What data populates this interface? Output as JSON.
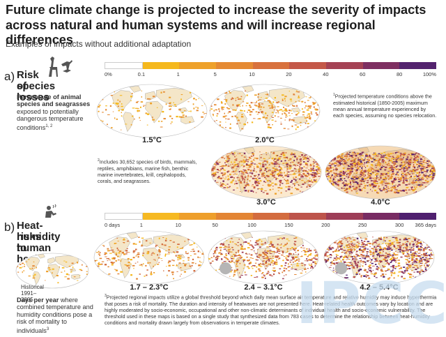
{
  "header": {
    "title": "Future climate change is projected to increase the severity of impacts across natural and human systems and will increase regional differences",
    "subtitle": "Examples of impacts without additional adaptation"
  },
  "section_a": {
    "letter": "a)",
    "title_line1": "Risk of",
    "title_line2": "species losses",
    "desc_bold": "Percentage of animal species and seagrasses",
    "desc_rest": " exposed to potentially dangerous temperature conditions",
    "desc_sup": "1, 2",
    "colorbar_ticks": [
      "0%",
      "0.1",
      "1",
      "5",
      "10",
      "20",
      "40",
      "60",
      "80",
      "100%"
    ],
    "colorbar_colors": [
      "#ffffff",
      "#f5b81c",
      "#eea12a",
      "#e58a33",
      "#d8713d",
      "#c45848",
      "#a54254",
      "#7e2f61",
      "#53236e"
    ],
    "maps": [
      {
        "label": "1.5°C"
      },
      {
        "label": "2.0°C"
      },
      {
        "label": "3.0°C"
      },
      {
        "label": "4.0°C"
      }
    ],
    "note1_sup": "1",
    "note1": "Projected temperature conditions above the estimated historical (1850-2005) maximum mean annual temperature experienced by each species, assuming no species relocation.",
    "note2_sup": "2",
    "note2": "Includes 30,652 species of birds, mammals, reptiles, amphibians, marine fish, benthic marine invertebrates, krill, cephalopods, corals, and seagrasses.",
    "icon": "giraffe-bird-icon"
  },
  "section_b": {
    "letter": "b)",
    "title_line1": "Heat-humidity",
    "title_line2": "risks to",
    "title_line3": "human health",
    "desc_bold": "Days per year",
    "desc_rest": " where combined temperature and humidity conditions pose a risk of mortality to individuals",
    "desc_sup": "3",
    "colorbar_ticks": [
      "0 days",
      "1",
      "10",
      "50",
      "100",
      "150",
      "200",
      "250",
      "300",
      "365 days"
    ],
    "colorbar_colors": [
      "#ffffff",
      "#f6b922",
      "#ee9f2c",
      "#e38534",
      "#d36c3f",
      "#bd544b",
      "#9d3d57",
      "#782c63",
      "#4f206f"
    ],
    "historical_label": "Historical 1991–2005",
    "maps": [
      {
        "label": "1.7 – 2.3°C"
      },
      {
        "label": "2.4 – 3.1°C"
      },
      {
        "label": "4.2 – 5.4°C"
      }
    ],
    "note3_sup": "3",
    "note3": "Projected regional impacts utilize a global threshold beyond which daily mean surface air temperature and relative humidity may induce hyperthermia that poses a risk of mortality. The duration and intensity of heatwaves are not presented here. Heat-related health outcomes vary by location and are highly moderated by socio-economic, occupational and other non-climatic determinants of individual health and socio-economic vulnerability. The threshold used in these maps is based on a single study that synthesized data from 783 cases to determine the relationship between heat-humidity conditions and mortality drawn largely from observations in temperate climates.",
    "icon": "person-in-heat-icon"
  },
  "watermark": "IPCC"
}
